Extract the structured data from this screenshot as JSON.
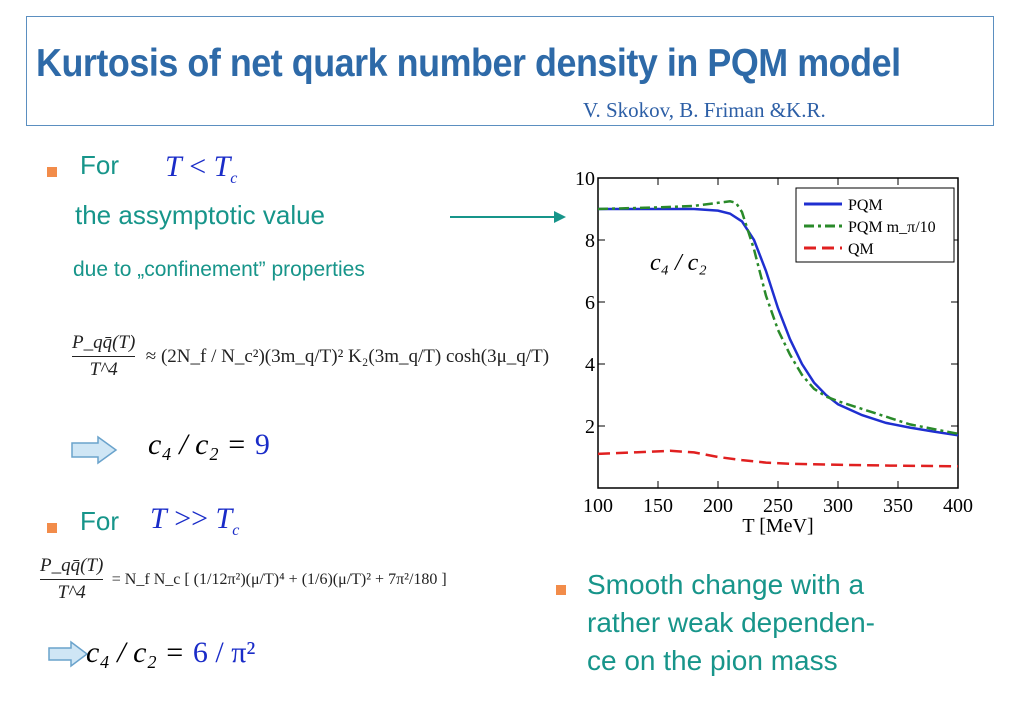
{
  "slide": {
    "title": "Kurtosis of net quark number density in PQM model",
    "authors": "V. Skokov, B. Friman &K.R.",
    "bullet1": {
      "label": "For",
      "condition": "T < T_c",
      "line2": "the assymptotic value",
      "line3": "due to „confinement” properties"
    },
    "formula1": {
      "lhs_num": "P_qq̄(T)",
      "lhs_den": "T^4",
      "rhs_text": "≈ (2N_f / N_c²)(3m_q/T)² K₂(3m_q/T) cosh(3μ_q/T)"
    },
    "result1": {
      "lhs": "c₄ / c₂ =",
      "value": "9"
    },
    "bullet2": {
      "label": "For",
      "condition": "T >> T_c"
    },
    "formula2": {
      "lhs_num": "P_qq̄(T)",
      "lhs_den": "T^4",
      "rhs_text": "= N_f N_c [ (1/12π²)(μ/T)⁴ + (1/6)(μ/T)² + 7π²/180 ]"
    },
    "result2": {
      "lhs": "c₄ / c₂ =",
      "value": "6 / π²"
    },
    "bullet3": {
      "lines": [
        "Smooth change with a",
        "rather weak dependen-",
        "ce on the pion mass"
      ]
    }
  },
  "chart_data": {
    "type": "line",
    "xlabel": "T  [MeV]",
    "annotation": "c₄ / c₂",
    "xlim": [
      100,
      400
    ],
    "ylim": [
      0,
      10
    ],
    "xticks": [
      100,
      150,
      200,
      250,
      300,
      350,
      400
    ],
    "yticks": [
      2,
      4,
      6,
      8,
      10
    ],
    "legend_position": "top-right",
    "series": [
      {
        "name": "PQM",
        "color": "#1f2fd0",
        "style": "solid",
        "x": [
          100,
          150,
          180,
          200,
          210,
          220,
          230,
          240,
          250,
          260,
          270,
          280,
          290,
          300,
          320,
          340,
          360,
          380,
          400
        ],
        "y": [
          9.0,
          9.0,
          9.0,
          8.95,
          8.85,
          8.6,
          8.0,
          7.0,
          5.8,
          4.8,
          4.0,
          3.4,
          3.0,
          2.7,
          2.35,
          2.1,
          1.95,
          1.82,
          1.7
        ]
      },
      {
        "name": "PQM m_π/10",
        "color": "#2a8a2a",
        "style": "dashdot",
        "x": [
          100,
          150,
          180,
          200,
          210,
          215,
          220,
          230,
          240,
          250,
          260,
          270,
          280,
          290,
          300,
          320,
          340,
          360,
          380,
          400
        ],
        "y": [
          9.0,
          9.05,
          9.1,
          9.2,
          9.25,
          9.2,
          8.9,
          7.7,
          6.2,
          5.1,
          4.3,
          3.65,
          3.2,
          2.95,
          2.8,
          2.55,
          2.3,
          2.05,
          1.9,
          1.75
        ]
      },
      {
        "name": "QM",
        "color": "#e02020",
        "style": "dashed",
        "x": [
          100,
          130,
          160,
          180,
          200,
          220,
          240,
          260,
          300,
          350,
          400
        ],
        "y": [
          1.1,
          1.15,
          1.2,
          1.15,
          1.0,
          0.9,
          0.82,
          0.78,
          0.75,
          0.72,
          0.7
        ]
      }
    ]
  }
}
